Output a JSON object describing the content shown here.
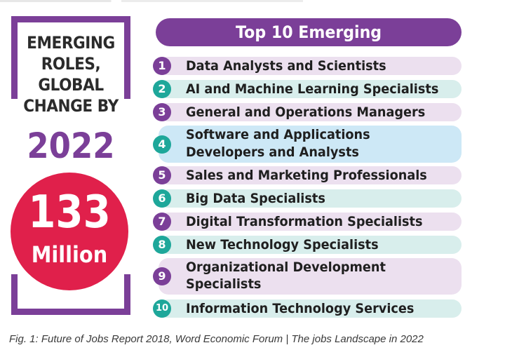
{
  "left_panel": {
    "heading_lines": [
      "EMERGING",
      "ROLES,",
      "GLOBAL",
      "CHANGE BY"
    ],
    "year": "2022",
    "big_number": "133",
    "big_unit": "Million",
    "colors": {
      "frame": "#7b3f98",
      "circle": "#e0204b",
      "heading": "#2b2b2b"
    }
  },
  "list": {
    "title": "Top 10 Emerging",
    "items": [
      {
        "number": "1",
        "label": "Data Analysts and Scientists"
      },
      {
        "number": "2",
        "label": "AI and Machine Learning Specialists"
      },
      {
        "number": "3",
        "label": "General and Operations Managers"
      },
      {
        "number": "4",
        "label_lines": [
          "Software and Applications",
          "Developers and Analysts"
        ]
      },
      {
        "number": "5",
        "label": "Sales and Marketing Professionals"
      },
      {
        "number": "6",
        "label": "Big Data Specialists"
      },
      {
        "number": "7",
        "label": "Digital Transformation Specialists"
      },
      {
        "number": "8",
        "label": "New Technology Specialists"
      },
      {
        "number": "9",
        "label_lines": [
          "Organizational Development",
          "Specialists"
        ]
      },
      {
        "number": "10",
        "label": "Information Technology Services"
      }
    ],
    "colors": {
      "purple": "#7b3f98",
      "teal": "#1ea79a",
      "purple_bar": "#ece0ef",
      "teal_bar": "#d8eeec",
      "blue_bar": "#cde8f6"
    }
  },
  "caption": "Fig. 1: Future of Jobs Report 2018, Word Economic Forum | The jobs Landscape in 2022"
}
